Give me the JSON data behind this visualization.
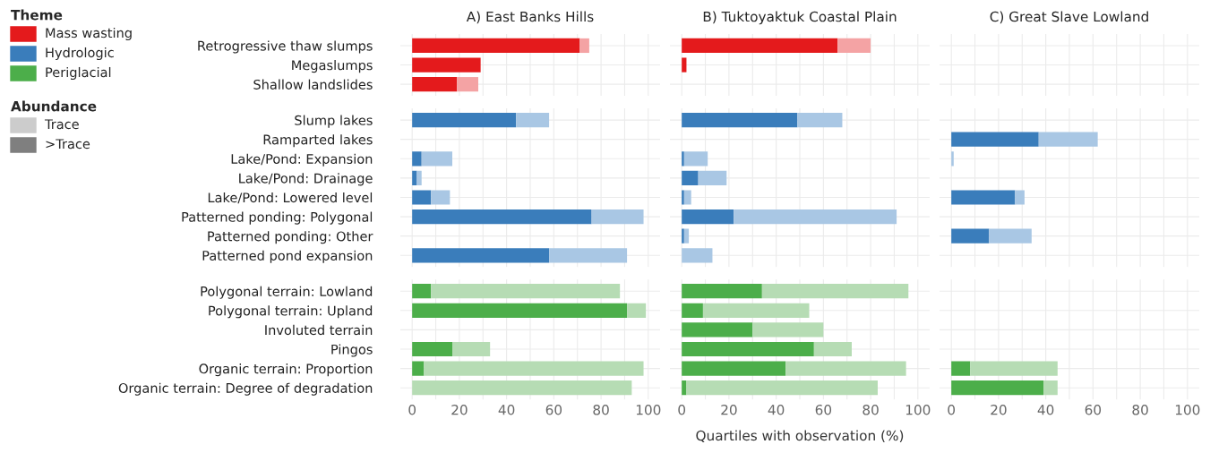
{
  "chart_data": [
    {
      "type": "other",
      "title": "Theme",
      "categories": [
        "Mass wasting",
        "Hydrologic",
        "Periglacial"
      ],
      "colors": [
        "#e41a1c",
        "#3a7dbb",
        "#4cae4a"
      ]
    },
    {
      "type": "other",
      "title": "Abundance",
      "categories": [
        "Trace",
        ">Trace"
      ],
      "colors": [
        "#cccccc",
        "#7f7f7f"
      ]
    },
    {
      "type": "bar",
      "orientation": "horizontal",
      "stacked": true,
      "title": "A) East Banks Hills",
      "tick_labels": "y",
      "grid": true,
      "xlim": [
        -5,
        105
      ],
      "xticks": [
        0,
        {
          "value": 10,
          "label": null
        },
        20,
        {
          "value": 30,
          "label": null
        },
        40,
        {
          "value": 50,
          "label": null
        },
        60,
        {
          "value": 70,
          "label": null
        },
        80,
        {
          "value": 90,
          "label": null
        },
        100
      ],
      "categories": [
        "Retrogressive thaw slumps",
        "Megaslumps",
        "Shallow landslides"
      ],
      "series": [
        {
          "color": "#e41a1c",
          "values": [
            71,
            29,
            19
          ]
        },
        {
          "color": "#f4a3a4",
          "values": [
            4,
            null,
            9
          ]
        }
      ]
    },
    {
      "type": "bar",
      "orientation": "horizontal",
      "stacked": true,
      "title": "B) Tuktoyaktuk Coastal Plain",
      "tick_labels": false,
      "grid": true,
      "xlim": [
        -5,
        105
      ],
      "xticks": [
        0,
        {
          "value": 10,
          "label": null
        },
        20,
        {
          "value": 30,
          "label": null
        },
        40,
        {
          "value": 50,
          "label": null
        },
        60,
        {
          "value": 70,
          "label": null
        },
        80,
        {
          "value": 90,
          "label": null
        },
        100
      ],
      "categories": [
        null,
        null,
        null
      ],
      "series": [
        {
          "color": "#e41a1c",
          "values": [
            66,
            2,
            null
          ]
        },
        {
          "color": "#f4a3a4",
          "values": [
            14,
            null,
            null
          ]
        }
      ]
    },
    {
      "type": "bar",
      "orientation": "horizontal",
      "title": "C) Great Slave Lowland",
      "tick_labels": false,
      "grid": true,
      "xlim": [
        -5,
        105
      ],
      "xticks": [
        0,
        {
          "value": 10,
          "label": null
        },
        20,
        {
          "value": 30,
          "label": null
        },
        40,
        {
          "value": 50,
          "label": null
        },
        60,
        {
          "value": 70,
          "label": null
        },
        80,
        {
          "value": 90,
          "label": null
        },
        100
      ],
      "categories": [
        null,
        null,
        null
      ]
    },
    {
      "type": "bar",
      "orientation": "horizontal",
      "stacked": true,
      "tick_labels": "y",
      "grid": true,
      "xlim": [
        -5,
        105
      ],
      "xticks": [
        0,
        {
          "value": 10,
          "label": null
        },
        20,
        {
          "value": 30,
          "label": null
        },
        40,
        {
          "value": 50,
          "label": null
        },
        60,
        {
          "value": 70,
          "label": null
        },
        80,
        {
          "value": 90,
          "label": null
        },
        100
      ],
      "categories": [
        "Slump lakes",
        "Ramparted lakes",
        "Lake/Pond: Expansion",
        "Lake/Pond: Drainage",
        "Lake/Pond: Lowered level",
        "Patterned ponding: Polygonal",
        "Patterned ponding: Other",
        "Patterned pond expansion"
      ],
      "series": [
        {
          "color": "#3a7dbb",
          "values": [
            44,
            null,
            4,
            2,
            8,
            76,
            null,
            58
          ]
        },
        {
          "color": "#a9c7e4",
          "values": [
            14,
            null,
            13,
            2,
            8,
            22,
            null,
            33
          ]
        }
      ]
    },
    {
      "type": "bar",
      "orientation": "horizontal",
      "stacked": true,
      "tick_labels": false,
      "grid": true,
      "xlim": [
        -5,
        105
      ],
      "xticks": [
        0,
        {
          "value": 10,
          "label": null
        },
        20,
        {
          "value": 30,
          "label": null
        },
        40,
        {
          "value": 50,
          "label": null
        },
        60,
        {
          "value": 70,
          "label": null
        },
        80,
        {
          "value": 90,
          "label": null
        },
        100
      ],
      "categories": [
        null,
        null,
        null,
        null,
        null,
        null,
        null,
        null
      ],
      "series": [
        {
          "color": "#3a7dbb",
          "values": [
            49,
            null,
            1,
            7,
            1,
            22,
            1,
            null
          ]
        },
        {
          "color": "#a9c7e4",
          "values": [
            19,
            null,
            10,
            12,
            3,
            69,
            2,
            13
          ]
        }
      ]
    },
    {
      "type": "bar",
      "orientation": "horizontal",
      "stacked": true,
      "tick_labels": false,
      "grid": true,
      "xlim": [
        -5,
        105
      ],
      "xticks": [
        0,
        {
          "value": 10,
          "label": null
        },
        20,
        {
          "value": 30,
          "label": null
        },
        40,
        {
          "value": 50,
          "label": null
        },
        60,
        {
          "value": 70,
          "label": null
        },
        80,
        {
          "value": 90,
          "label": null
        },
        100
      ],
      "categories": [
        null,
        null,
        null,
        null,
        null,
        null,
        null,
        null
      ],
      "series": [
        {
          "color": "#3a7dbb",
          "values": [
            null,
            37,
            null,
            null,
            27,
            null,
            16,
            null
          ]
        },
        {
          "color": "#a9c7e4",
          "values": [
            null,
            25,
            1,
            null,
            4,
            null,
            18,
            null
          ]
        }
      ]
    },
    {
      "type": "bar",
      "orientation": "horizontal",
      "stacked": true,
      "grid": true,
      "xlim": [
        -5,
        105
      ],
      "xticks": [
        0,
        {
          "value": 10,
          "label": null
        },
        20,
        {
          "value": 30,
          "label": null
        },
        40,
        {
          "value": 50,
          "label": null
        },
        60,
        {
          "value": 70,
          "label": null
        },
        80,
        {
          "value": 90,
          "label": null
        },
        100
      ],
      "categories": [
        "Polygonal terrain: Lowland",
        "Polygonal terrain: Upland",
        "Involuted terrain",
        "Pingos",
        "Organic terrain: Proportion",
        "Organic terrain: Degree of degradation"
      ],
      "series": [
        {
          "color": "#4cae4a",
          "values": [
            8,
            91,
            null,
            17,
            5,
            null
          ]
        },
        {
          "color": "#b6dcb4",
          "values": [
            80,
            8,
            null,
            16,
            93,
            93
          ]
        }
      ]
    },
    {
      "type": "bar",
      "orientation": "horizontal",
      "stacked": true,
      "xlabel": "Quartiles with observation (%)",
      "tick_labels": "x",
      "grid": true,
      "xlim": [
        -5,
        105
      ],
      "xticks": [
        0,
        {
          "value": 10,
          "label": null
        },
        20,
        {
          "value": 30,
          "label": null
        },
        40,
        {
          "value": 50,
          "label": null
        },
        60,
        {
          "value": 70,
          "label": null
        },
        80,
        {
          "value": 90,
          "label": null
        },
        100
      ],
      "categories": [
        null,
        null,
        null,
        null,
        null,
        null
      ],
      "series": [
        {
          "color": "#4cae4a",
          "values": [
            34,
            9,
            30,
            56,
            44,
            2
          ]
        },
        {
          "color": "#b6dcb4",
          "values": [
            62,
            45,
            30,
            16,
            51,
            81
          ]
        }
      ]
    },
    {
      "type": "bar",
      "orientation": "horizontal",
      "stacked": true,
      "tick_labels": "x",
      "grid": true,
      "xlim": [
        -5,
        105
      ],
      "xticks": [
        0,
        {
          "value": 10,
          "label": null
        },
        20,
        {
          "value": 30,
          "label": null
        },
        40,
        {
          "value": 50,
          "label": null
        },
        60,
        {
          "value": 70,
          "label": null
        },
        80,
        {
          "value": 90,
          "label": null
        },
        100
      ],
      "categories": [
        null,
        null,
        null,
        null,
        null,
        null
      ],
      "series": [
        {
          "color": "#4cae4a",
          "values": [
            null,
            null,
            null,
            null,
            8,
            39
          ]
        },
        {
          "color": "#b6dcb4",
          "values": [
            null,
            null,
            null,
            null,
            37,
            6
          ]
        }
      ]
    }
  ]
}
